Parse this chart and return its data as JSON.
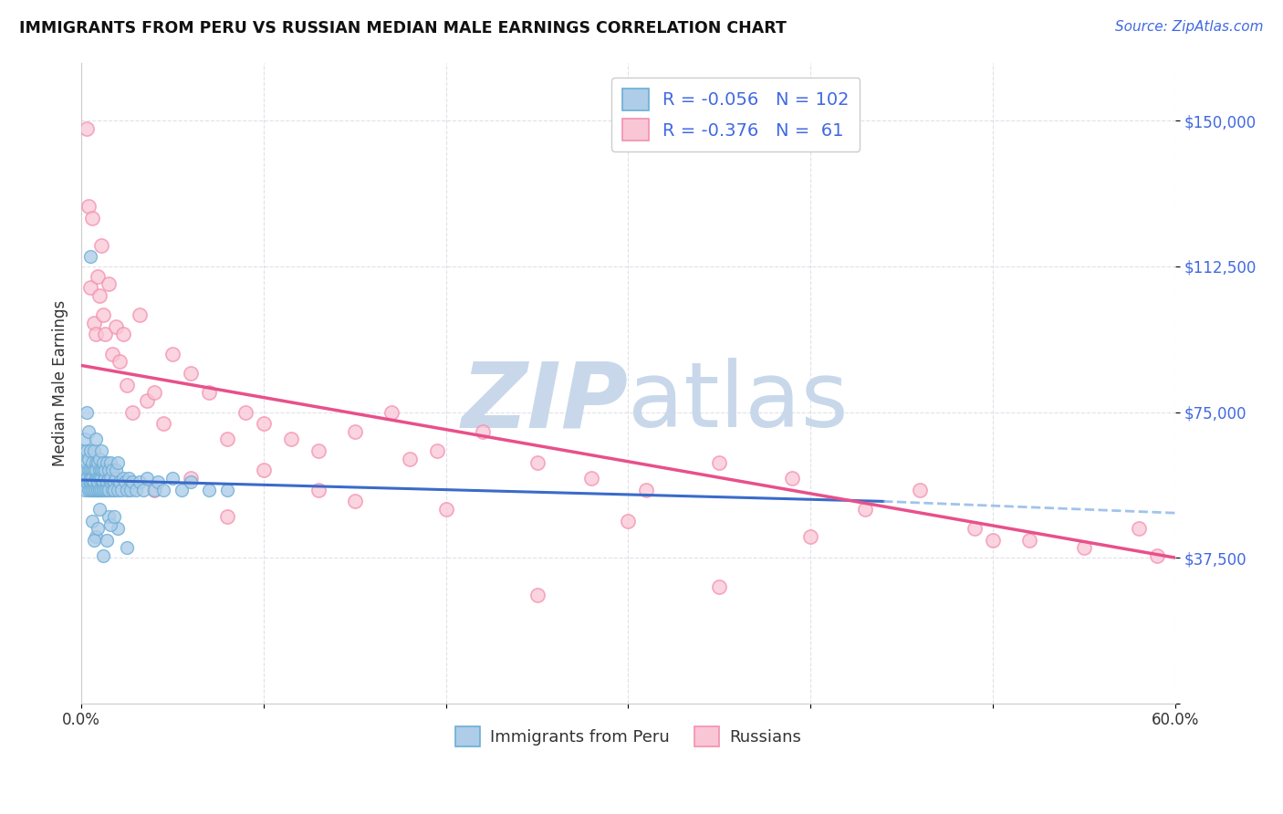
{
  "title": "IMMIGRANTS FROM PERU VS RUSSIAN MEDIAN MALE EARNINGS CORRELATION CHART",
  "source": "Source: ZipAtlas.com",
  "ylabel": "Median Male Earnings",
  "yticks": [
    0,
    37500,
    75000,
    112500,
    150000
  ],
  "ytick_labels": [
    "",
    "$37,500",
    "$75,000",
    "$112,500",
    "$150,000"
  ],
  "xlim": [
    0.0,
    0.6
  ],
  "ylim": [
    5000,
    165000
  ],
  "legend_labels": [
    "Immigrants from Peru",
    "Russians"
  ],
  "legend_R": [
    "-0.056",
    "-0.376"
  ],
  "legend_N": [
    "102",
    "61"
  ],
  "blue_color": "#6baed6",
  "blue_fill": "#aecde8",
  "pink_color": "#f48fb1",
  "pink_fill": "#f9c6d5",
  "trend_blue_solid": "#3a6bc9",
  "trend_blue_dash": "#8ab4e8",
  "trend_pink": "#e8508a",
  "watermark_zip": "ZIP",
  "watermark_atlas": "atlas",
  "watermark_color": "#c8d8ea",
  "blue_scatter_x": [
    0.001,
    0.001,
    0.002,
    0.002,
    0.002,
    0.003,
    0.003,
    0.003,
    0.003,
    0.004,
    0.004,
    0.004,
    0.004,
    0.005,
    0.005,
    0.005,
    0.005,
    0.005,
    0.006,
    0.006,
    0.006,
    0.006,
    0.007,
    0.007,
    0.007,
    0.007,
    0.008,
    0.008,
    0.008,
    0.008,
    0.008,
    0.009,
    0.009,
    0.009,
    0.009,
    0.01,
    0.01,
    0.01,
    0.01,
    0.01,
    0.011,
    0.011,
    0.011,
    0.011,
    0.012,
    0.012,
    0.012,
    0.012,
    0.013,
    0.013,
    0.013,
    0.014,
    0.014,
    0.014,
    0.015,
    0.015,
    0.015,
    0.016,
    0.016,
    0.016,
    0.017,
    0.017,
    0.018,
    0.018,
    0.019,
    0.019,
    0.02,
    0.02,
    0.021,
    0.022,
    0.023,
    0.024,
    0.025,
    0.026,
    0.027,
    0.028,
    0.03,
    0.032,
    0.034,
    0.036,
    0.04,
    0.042,
    0.045,
    0.05,
    0.055,
    0.06,
    0.07,
    0.08,
    0.02,
    0.025,
    0.015,
    0.01,
    0.008,
    0.006,
    0.005,
    0.003,
    0.007,
    0.009,
    0.012,
    0.014,
    0.016,
    0.018
  ],
  "blue_scatter_y": [
    58000,
    65000,
    60000,
    55000,
    68000,
    57000,
    62000,
    58000,
    65000,
    60000,
    55000,
    70000,
    63000,
    57000,
    60000,
    55000,
    65000,
    58000,
    60000,
    55000,
    62000,
    58000,
    57000,
    60000,
    55000,
    65000,
    58000,
    62000,
    55000,
    60000,
    68000,
    55000,
    58000,
    62000,
    57000,
    55000,
    60000,
    58000,
    63000,
    55000,
    58000,
    60000,
    55000,
    65000,
    57000,
    60000,
    55000,
    62000,
    58000,
    55000,
    60000,
    57000,
    62000,
    55000,
    58000,
    60000,
    55000,
    57000,
    62000,
    58000,
    55000,
    60000,
    57000,
    55000,
    58000,
    60000,
    55000,
    62000,
    57000,
    55000,
    58000,
    57000,
    55000,
    58000,
    55000,
    57000,
    55000,
    57000,
    55000,
    58000,
    55000,
    57000,
    55000,
    58000,
    55000,
    57000,
    55000,
    55000,
    45000,
    40000,
    48000,
    50000,
    43000,
    47000,
    115000,
    75000,
    42000,
    45000,
    38000,
    42000,
    46000,
    48000
  ],
  "pink_scatter_x": [
    0.003,
    0.004,
    0.005,
    0.006,
    0.007,
    0.008,
    0.009,
    0.01,
    0.011,
    0.012,
    0.013,
    0.015,
    0.017,
    0.019,
    0.021,
    0.023,
    0.025,
    0.028,
    0.032,
    0.036,
    0.04,
    0.045,
    0.05,
    0.06,
    0.07,
    0.08,
    0.09,
    0.1,
    0.115,
    0.13,
    0.15,
    0.17,
    0.195,
    0.22,
    0.25,
    0.28,
    0.31,
    0.35,
    0.39,
    0.43,
    0.46,
    0.49,
    0.52,
    0.55,
    0.58,
    0.59,
    0.01,
    0.025,
    0.04,
    0.08,
    0.13,
    0.2,
    0.3,
    0.4,
    0.5,
    0.35,
    0.25,
    0.15,
    0.1,
    0.06,
    0.18
  ],
  "pink_scatter_y": [
    148000,
    128000,
    107000,
    125000,
    98000,
    95000,
    110000,
    105000,
    118000,
    100000,
    95000,
    108000,
    90000,
    97000,
    88000,
    95000,
    82000,
    75000,
    100000,
    78000,
    80000,
    72000,
    90000,
    85000,
    80000,
    68000,
    75000,
    72000,
    68000,
    65000,
    70000,
    75000,
    65000,
    70000,
    62000,
    58000,
    55000,
    62000,
    58000,
    50000,
    55000,
    45000,
    42000,
    40000,
    45000,
    38000,
    60000,
    57000,
    55000,
    48000,
    55000,
    50000,
    47000,
    43000,
    42000,
    30000,
    28000,
    52000,
    60000,
    58000,
    63000
  ]
}
